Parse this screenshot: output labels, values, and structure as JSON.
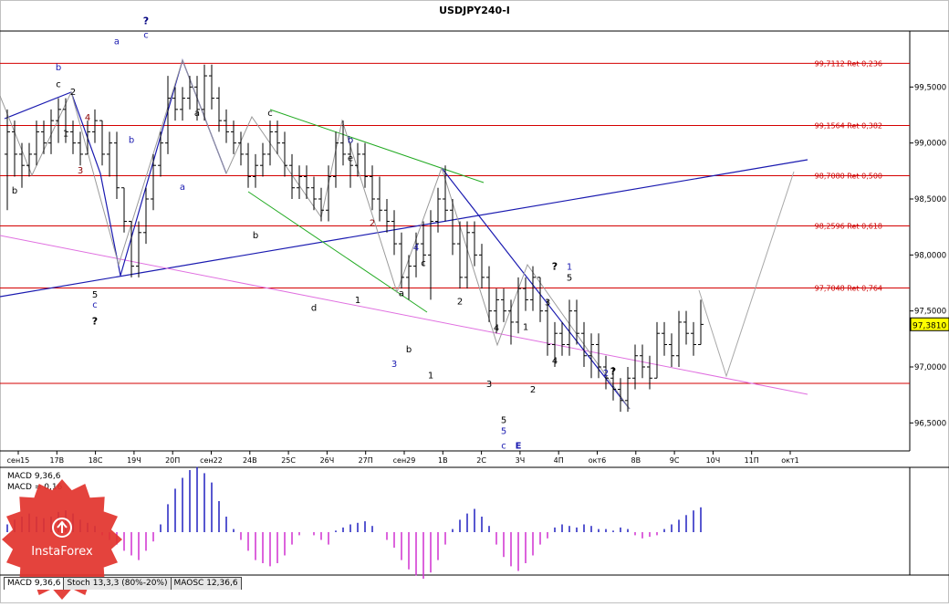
{
  "chart_data": {
    "type": "candlestick",
    "title": "USDJPY240-I",
    "current_price_label": "97,3810",
    "y_ticks": [
      "99,5000",
      "99,0000",
      "98,5000",
      "98,0000",
      "97,5000",
      "97,0000",
      "96,5000"
    ],
    "x_ticks": [
      "сен15",
      "17В",
      "18С",
      "19Ч",
      "20П",
      "сен22",
      "24В",
      "25С",
      "26Ч",
      "27П",
      "сен29",
      "1В",
      "2С",
      "3Ч",
      "4П",
      "окт6",
      "8В",
      "9С",
      "10Ч",
      "11П",
      "окт1"
    ],
    "fib_levels": [
      {
        "price": 99.7112,
        "label": "99,7112 Ret 0,236"
      },
      {
        "price": 99.1564,
        "label": "99,1564 Ret 0,382"
      },
      {
        "price": 98.708,
        "label": "98,7080 Ret 0,500"
      },
      {
        "price": 98.2596,
        "label": "98,2596 Ret 0,618"
      },
      {
        "price": 97.7048,
        "label": "97,7048 Ret 0,764"
      }
    ],
    "ohlc": [
      [
        98.9,
        99.3,
        98.4,
        99.1
      ],
      [
        99.1,
        99.2,
        98.7,
        98.9
      ],
      [
        98.9,
        99.0,
        98.6,
        98.8
      ],
      [
        98.8,
        99.0,
        98.7,
        98.9
      ],
      [
        98.9,
        99.2,
        98.8,
        99.1
      ],
      [
        99.1,
        99.2,
        98.9,
        99.0
      ],
      [
        99.0,
        99.3,
        98.9,
        99.2
      ],
      [
        99.2,
        99.4,
        99.0,
        99.3
      ],
      [
        99.3,
        99.4,
        99.0,
        99.1
      ],
      [
        99.1,
        99.2,
        98.9,
        99.0
      ],
      [
        99.0,
        99.1,
        98.8,
        98.9
      ],
      [
        98.9,
        99.2,
        98.9,
        99.1
      ],
      [
        99.1,
        99.3,
        99.0,
        99.2
      ],
      [
        99.2,
        99.2,
        98.8,
        98.9
      ],
      [
        98.9,
        99.1,
        98.7,
        99.0
      ],
      [
        99.0,
        99.1,
        98.5,
        98.6
      ],
      [
        98.6,
        98.6,
        98.2,
        98.3
      ],
      [
        98.3,
        98.3,
        97.8,
        97.9
      ],
      [
        97.9,
        98.3,
        97.8,
        98.2
      ],
      [
        98.2,
        98.6,
        98.1,
        98.5
      ],
      [
        98.5,
        98.9,
        98.4,
        98.8
      ],
      [
        98.8,
        99.1,
        98.7,
        99.0
      ],
      [
        99.0,
        99.6,
        98.9,
        99.4
      ],
      [
        99.4,
        99.5,
        99.2,
        99.3
      ],
      [
        99.3,
        99.5,
        99.2,
        99.4
      ],
      [
        99.4,
        99.6,
        99.3,
        99.5
      ],
      [
        99.5,
        99.6,
        99.2,
        99.3
      ],
      [
        99.3,
        99.7,
        99.2,
        99.6
      ],
      [
        99.6,
        99.7,
        99.3,
        99.4
      ],
      [
        99.4,
        99.5,
        99.1,
        99.2
      ],
      [
        99.2,
        99.3,
        99.0,
        99.1
      ],
      [
        99.1,
        99.2,
        98.9,
        99.0
      ],
      [
        99.0,
        99.1,
        98.8,
        98.9
      ],
      [
        98.9,
        99.0,
        98.6,
        98.7
      ],
      [
        98.7,
        98.9,
        98.6,
        98.8
      ],
      [
        98.8,
        99.0,
        98.7,
        98.9
      ],
      [
        98.9,
        99.2,
        98.8,
        99.1
      ],
      [
        99.1,
        99.2,
        98.9,
        99.0
      ],
      [
        99.0,
        99.1,
        98.7,
        98.8
      ],
      [
        98.8,
        98.9,
        98.5,
        98.6
      ],
      [
        98.6,
        98.8,
        98.5,
        98.7
      ],
      [
        98.7,
        98.8,
        98.5,
        98.6
      ],
      [
        98.6,
        98.7,
        98.4,
        98.5
      ],
      [
        98.5,
        98.6,
        98.3,
        98.4
      ],
      [
        98.4,
        98.8,
        98.3,
        98.7
      ],
      [
        98.7,
        99.1,
        98.6,
        99.0
      ],
      [
        99.0,
        99.2,
        98.8,
        98.9
      ],
      [
        98.9,
        99.0,
        98.6,
        98.8
      ],
      [
        98.8,
        99.0,
        98.7,
        98.9
      ],
      [
        98.9,
        99.0,
        98.6,
        98.7
      ],
      [
        98.7,
        98.8,
        98.4,
        98.5
      ],
      [
        98.5,
        98.7,
        98.3,
        98.4
      ],
      [
        98.4,
        98.5,
        98.2,
        98.3
      ],
      [
        98.3,
        98.4,
        98.0,
        98.1
      ],
      [
        98.1,
        98.2,
        97.7,
        97.8
      ],
      [
        97.8,
        98.0,
        97.6,
        97.9
      ],
      [
        97.9,
        98.2,
        97.8,
        98.1
      ],
      [
        98.1,
        98.3,
        97.9,
        98.0
      ],
      [
        98.0,
        98.4,
        97.6,
        98.3
      ],
      [
        98.3,
        98.6,
        98.2,
        98.5
      ],
      [
        98.5,
        98.8,
        98.3,
        98.4
      ],
      [
        98.4,
        98.5,
        98.0,
        98.1
      ],
      [
        98.1,
        98.3,
        97.7,
        97.8
      ],
      [
        97.8,
        98.3,
        97.7,
        98.2
      ],
      [
        98.2,
        98.3,
        97.9,
        98.0
      ],
      [
        98.0,
        98.1,
        97.7,
        97.8
      ],
      [
        97.8,
        97.9,
        97.4,
        97.5
      ],
      [
        97.5,
        97.7,
        97.3,
        97.6
      ],
      [
        97.6,
        97.7,
        97.4,
        97.5
      ],
      [
        97.5,
        97.6,
        97.2,
        97.4
      ],
      [
        97.4,
        97.8,
        97.3,
        97.7
      ],
      [
        97.7,
        97.8,
        97.5,
        97.6
      ],
      [
        97.6,
        97.9,
        97.5,
        97.8
      ],
      [
        97.8,
        97.8,
        97.4,
        97.5
      ],
      [
        97.5,
        97.6,
        97.1,
        97.2
      ],
      [
        97.2,
        97.4,
        97.0,
        97.3
      ],
      [
        97.3,
        97.4,
        97.1,
        97.2
      ],
      [
        97.2,
        97.6,
        97.1,
        97.5
      ],
      [
        97.5,
        97.6,
        97.2,
        97.3
      ],
      [
        97.3,
        97.4,
        97.0,
        97.1
      ],
      [
        97.1,
        97.3,
        96.9,
        97.2
      ],
      [
        97.2,
        97.3,
        96.9,
        97.0
      ],
      [
        97.0,
        97.1,
        96.8,
        96.9
      ],
      [
        96.9,
        97.0,
        96.7,
        96.8
      ],
      [
        96.8,
        96.9,
        96.6,
        96.7
      ],
      [
        96.7,
        97.0,
        96.6,
        96.9
      ],
      [
        96.9,
        97.2,
        96.8,
        97.1
      ],
      [
        97.1,
        97.2,
        96.9,
        97.0
      ],
      [
        97.0,
        97.1,
        96.8,
        96.9
      ],
      [
        96.9,
        97.4,
        96.9,
        97.3
      ],
      [
        97.3,
        97.4,
        97.1,
        97.2
      ],
      [
        97.2,
        97.3,
        97.0,
        97.1
      ],
      [
        97.1,
        97.5,
        97.0,
        97.4
      ],
      [
        97.4,
        97.5,
        97.2,
        97.3
      ],
      [
        97.3,
        97.4,
        97.1,
        97.2
      ],
      [
        97.2,
        97.6,
        97.2,
        97.38
      ]
    ],
    "macd_label": "MACD 9,36,6",
    "macd_value_label": "MACD = 0,16",
    "macd": [
      0.05,
      0.08,
      0.1,
      0.12,
      0.1,
      0.09,
      0.1,
      0.13,
      0.14,
      0.12,
      0.08,
      0.06,
      0.04,
      -0.02,
      -0.05,
      -0.08,
      -0.12,
      -0.15,
      -0.18,
      -0.12,
      -0.06,
      0.05,
      0.18,
      0.28,
      0.35,
      0.4,
      0.42,
      0.38,
      0.32,
      0.2,
      0.1,
      0.02,
      -0.05,
      -0.12,
      -0.18,
      -0.2,
      -0.22,
      -0.2,
      -0.15,
      -0.08,
      -0.02,
      0.0,
      -0.02,
      -0.05,
      -0.08,
      0.01,
      0.03,
      0.05,
      0.06,
      0.07,
      0.04,
      0.0,
      -0.05,
      -0.1,
      -0.18,
      -0.24,
      -0.28,
      -0.3,
      -0.26,
      -0.18,
      -0.08,
      0.02,
      0.08,
      0.12,
      0.15,
      0.1,
      0.04,
      -0.08,
      -0.16,
      -0.22,
      -0.25,
      -0.2,
      -0.15,
      -0.08,
      -0.04,
      0.03,
      0.05,
      0.04,
      0.03,
      0.05,
      0.04,
      0.02,
      0.02,
      0.01,
      0.03,
      0.02,
      -0.02,
      -0.04,
      -0.03,
      -0.02,
      0.02,
      0.05,
      0.08,
      0.11,
      0.14,
      0.16
    ],
    "indicator_tabs": [
      "MACD 9,36,6",
      "Stoch 13,3,3 (80%-20%)",
      "MAOSC 12,36,6"
    ],
    "wave_labels": [
      {
        "t": "b",
        "i": 1,
        "p": 98.55,
        "c": "black"
      },
      {
        "t": "b",
        "i": 7,
        "p": 99.65,
        "c": "blue"
      },
      {
        "t": "c",
        "i": 7,
        "p": 99.5,
        "c": "black"
      },
      {
        "t": "1",
        "i": 8,
        "p": 99.06,
        "c": "black"
      },
      {
        "t": "2",
        "i": 9,
        "p": 99.43,
        "c": "black"
      },
      {
        "t": "4",
        "i": 11,
        "p": 99.2,
        "c": "brown"
      },
      {
        "t": "3",
        "i": 10,
        "p": 98.73,
        "c": "brown"
      },
      {
        "t": "b",
        "i": 17,
        "p": 99.0,
        "c": "blue"
      },
      {
        "t": "5",
        "i": 12,
        "p": 97.62,
        "c": "black"
      },
      {
        "t": "c",
        "i": 12,
        "p": 97.53,
        "c": "blue"
      },
      {
        "t": "?",
        "i": 12,
        "p": 97.38,
        "c": "black"
      },
      {
        "t": "a",
        "i": 15,
        "p": 99.88,
        "c": "blue"
      },
      {
        "t": "?",
        "i": 19,
        "p": 100.06,
        "c": "navy"
      },
      {
        "t": "c",
        "i": 19,
        "p": 99.94,
        "c": "blue"
      },
      {
        "t": "a",
        "i": 24,
        "p": 98.58,
        "c": "blue"
      },
      {
        "t": "a",
        "i": 26,
        "p": 99.24,
        "c": "black"
      },
      {
        "t": "c",
        "i": 36,
        "p": 99.24,
        "c": "black"
      },
      {
        "t": "b",
        "i": 34,
        "p": 98.15,
        "c": "black"
      },
      {
        "t": "d",
        "i": 42,
        "p": 97.5,
        "c": "black"
      },
      {
        "t": "b",
        "i": 47,
        "p": 99.0,
        "c": "navy"
      },
      {
        "t": "e",
        "i": 47,
        "p": 98.84,
        "c": "black"
      },
      {
        "t": "2",
        "i": 50,
        "p": 98.26,
        "c": "brown"
      },
      {
        "t": "1",
        "i": 48,
        "p": 97.57,
        "c": "black"
      },
      {
        "t": "a",
        "i": 54,
        "p": 97.63,
        "c": "black"
      },
      {
        "t": "b",
        "i": 55,
        "p": 97.13,
        "c": "black"
      },
      {
        "t": "3",
        "i": 53,
        "p": 97.0,
        "c": "blue"
      },
      {
        "t": "4",
        "i": 56,
        "p": 98.04,
        "c": "blue"
      },
      {
        "t": "c",
        "i": 57,
        "p": 97.9,
        "c": "black"
      },
      {
        "t": "1",
        "i": 58,
        "p": 96.9,
        "c": "black"
      },
      {
        "t": "2",
        "i": 62,
        "p": 97.56,
        "c": "black"
      },
      {
        "t": "4",
        "i": 67,
        "p": 97.32,
        "c": "black"
      },
      {
        "t": "3",
        "i": 66,
        "p": 96.82,
        "c": "black"
      },
      {
        "t": "5",
        "i": 68,
        "p": 96.5,
        "c": "black"
      },
      {
        "t": "5",
        "i": 68,
        "p": 96.4,
        "c": "blue"
      },
      {
        "t": "c",
        "i": 68,
        "p": 96.27,
        "c": "blue"
      },
      {
        "t": "E",
        "i": 70,
        "p": 96.27,
        "c": "blue"
      },
      {
        "t": "1",
        "i": 71,
        "p": 97.33,
        "c": "black"
      },
      {
        "t": "2",
        "i": 72,
        "p": 96.77,
        "c": "black"
      },
      {
        "t": "3",
        "i": 74,
        "p": 97.55,
        "c": "black"
      },
      {
        "t": "4",
        "i": 75,
        "p": 97.03,
        "c": "black"
      },
      {
        "t": "?",
        "i": 75,
        "p": 97.87,
        "c": "black"
      },
      {
        "t": "1",
        "i": 77,
        "p": 97.87,
        "c": "blue"
      },
      {
        "t": "5",
        "i": 77,
        "p": 97.77,
        "c": "black"
      },
      {
        "t": "2",
        "i": 82,
        "p": 96.92,
        "c": "blue"
      },
      {
        "t": "?",
        "i": 83,
        "p": 96.93,
        "c": "black"
      }
    ],
    "logo_text": "InstaForex"
  }
}
